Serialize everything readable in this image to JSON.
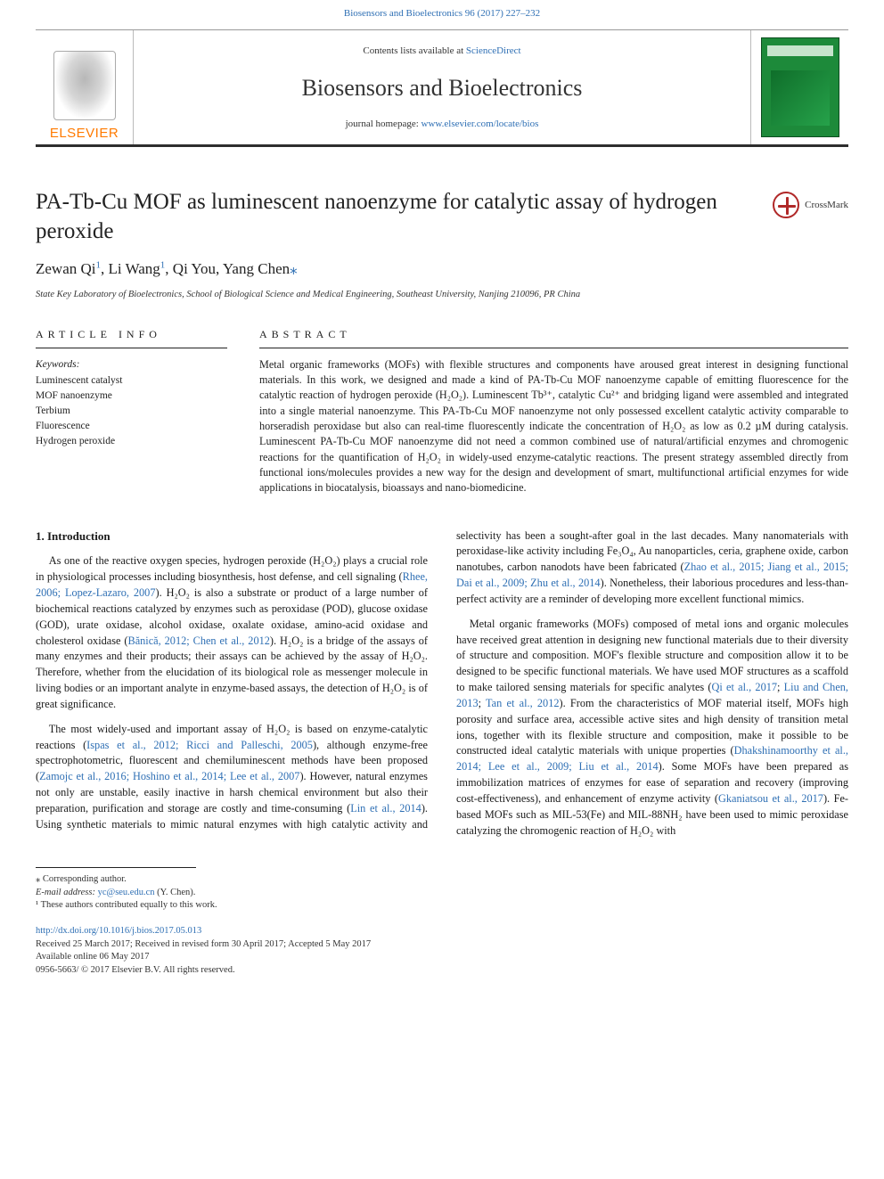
{
  "colors": {
    "link": "#2e6fb4",
    "orange": "#ff7a00",
    "text": "#1a1a1a",
    "rule": "#222222",
    "cover_bg": "#1d8a3a",
    "crossmark": "#b02828"
  },
  "header": {
    "top_link_text": "Biosensors and Bioelectronics 96 (2017) 227–232",
    "contents_prefix": "Contents lists available at ",
    "contents_link": "ScienceDirect",
    "journal_title": "Biosensors and Bioelectronics",
    "homepage_label": "journal homepage: ",
    "homepage_url": "www.elsevier.com/locate/bios",
    "publisher_word": "ELSEVIER"
  },
  "crossmark_label": "CrossMark",
  "article": {
    "title": "PA-Tb-Cu MOF as luminescent nanoenzyme for catalytic assay of hydrogen peroxide",
    "authors_html": "Zewan Qi<sup>1</sup>, Li Wang<sup>1</sup>, Qi You, Yang Chen<a>⁎</a>",
    "affiliation": "State Key Laboratory of Bioelectronics, School of Biological Science and Medical Engineering, Southeast University, Nanjing 210096, PR China"
  },
  "info": {
    "heading": "ARTICLE INFO",
    "keywords_label": "Keywords:",
    "keywords": [
      "Luminescent catalyst",
      "MOF nanoenzyme",
      "Terbium",
      "Fluorescence",
      "Hydrogen peroxide"
    ]
  },
  "abstract": {
    "heading": "ABSTRACT",
    "text": "Metal organic frameworks (MOFs) with flexible structures and components have aroused great interest in designing functional materials. In this work, we designed and made a kind of PA-Tb-Cu MOF nanoenzyme capable of emitting fluorescence for the catalytic reaction of hydrogen peroxide (H₂O₂). Luminescent Tb³⁺, catalytic Cu²⁺ and bridging ligand were assembled and integrated into a single material nanoenzyme. This PA-Tb-Cu MOF nanoenzyme not only possessed excellent catalytic activity comparable to horseradish peroxidase but also can real-time fluorescently indicate the concentration of H₂O₂ as low as 0.2 µM during catalysis. Luminescent PA-Tb-Cu MOF nanoenzyme did not need a common combined use of natural/artificial enzymes and chromogenic reactions for the quantification of H₂O₂ in widely-used enzyme-catalytic reactions. The present strategy assembled directly from functional ions/molecules provides a new way for the design and development of smart, multifunctional artificial enzymes for wide applications in biocatalysis, bioassays and nano-biomedicine."
  },
  "body": {
    "section_heading": "1.  Introduction",
    "p1": "As one of the reactive oxygen species, hydrogen peroxide (H₂O₂) plays a crucial role in physiological processes including biosynthesis, host defense, and cell signaling (",
    "p1_ref1": "Rhee, 2006; Lopez-Lazaro, 2007",
    "p1b": "). H₂O₂ is also a substrate or product of a large number of biochemical reactions catalyzed by enzymes such as peroxidase (POD), glucose oxidase (GOD), urate oxidase, alcohol oxidase, oxalate oxidase, amino-acid oxidase and cholesterol oxidase (",
    "p1_ref2": "Bănică, 2012; Chen et al., 2012",
    "p1c": "). H₂O₂ is a bridge of the assays of many enzymes and their products; their assays can be achieved by the assay of H₂O₂. Therefore, whether from the elucidation of its biological role as messenger molecule in living bodies or an important analyte in enzyme-based assays, the detection of H₂O₂ is of great significance.",
    "p2a": "The most widely-used and important assay of H₂O₂ is based on enzyme-catalytic reactions (",
    "p2_ref1": "Ispas et al., 2012; Ricci and Palleschi, 2005",
    "p2b": "), although enzyme-free spectrophotometric, fluorescent and chemiluminescent methods have been proposed (",
    "p2_ref2": "Zamojc et al., 2016; Hoshino et al., 2014; Lee et al., 2007",
    "p2c": "). However, natural enzymes not only are unstable, easily inactive in harsh chemical environment but also their preparation, purification and storage are costly and time-consuming (",
    "p2_ref3": "Lin et al., 2014",
    "p2d": "). Using synthetic materials to mimic natural enzymes with high catalytic activity and selectivity has been a sought-after goal in the last decades. Many nanomaterials with peroxidase-like activity including Fe₃O₄, Au nanoparticles, ceria, graphene oxide, carbon nanotubes, carbon nanodots have been fabricated (",
    "p2_ref4": "Zhao et al., 2015; Jiang et al., 2015; Dai et al., 2009; Zhu et al., 2014",
    "p2e": "). Nonetheless, their laborious procedures and less-than-perfect activity are a reminder of developing more excellent functional mimics.",
    "p3a": "Metal organic frameworks (MOFs) composed of metal ions and organic molecules have received great attention in designing new functional materials due to their diversity of structure and composition. MOF's flexible structure and composition allow it to be designed to be specific functional materials. We have used MOF structures as a scaffold to make tailored sensing materials for specific analytes (",
    "p3_ref1": "Qi et al., 2017",
    "p3b": "; ",
    "p3_ref2": "Liu and Chen, 2013",
    "p3c": "; ",
    "p3_ref3": "Tan et al., 2012",
    "p3d": "). From the characteristics of MOF material itself, MOFs high porosity and surface area, accessible active sites and high density of transition metal ions, together with its flexible structure and composition, make it possible to be constructed ideal catalytic materials with unique properties (",
    "p3_ref4": "Dhakshinamoorthy et al., 2014; Lee et al., 2009; Liu et al., 2014",
    "p3e": "). Some MOFs have been prepared as immobilization matrices of enzymes for ease of separation and recovery (improving cost-effectiveness), and enhancement of enzyme activity (",
    "p3_ref5": "Gkaniatsou et al., 2017",
    "p3f": "). Fe-based MOFs such as MIL-53(Fe) and MIL-88NH₂ have been used to mimic peroxidase catalyzing the chromogenic reaction of H₂O₂ with"
  },
  "footnotes": {
    "corr": "⁎ Corresponding author.",
    "email_label": "E-mail address: ",
    "email": "yc@seu.edu.cn",
    "email_tail": " (Y. Chen).",
    "equal": "¹ These authors contributed equally to this work."
  },
  "pub": {
    "doi": "http://dx.doi.org/10.1016/j.bios.2017.05.013",
    "history": "Received 25 March 2017; Received in revised form 30 April 2017; Accepted 5 May 2017",
    "online": "Available online 06 May 2017",
    "copyright": "0956-5663/ © 2017 Elsevier B.V. All rights reserved."
  }
}
